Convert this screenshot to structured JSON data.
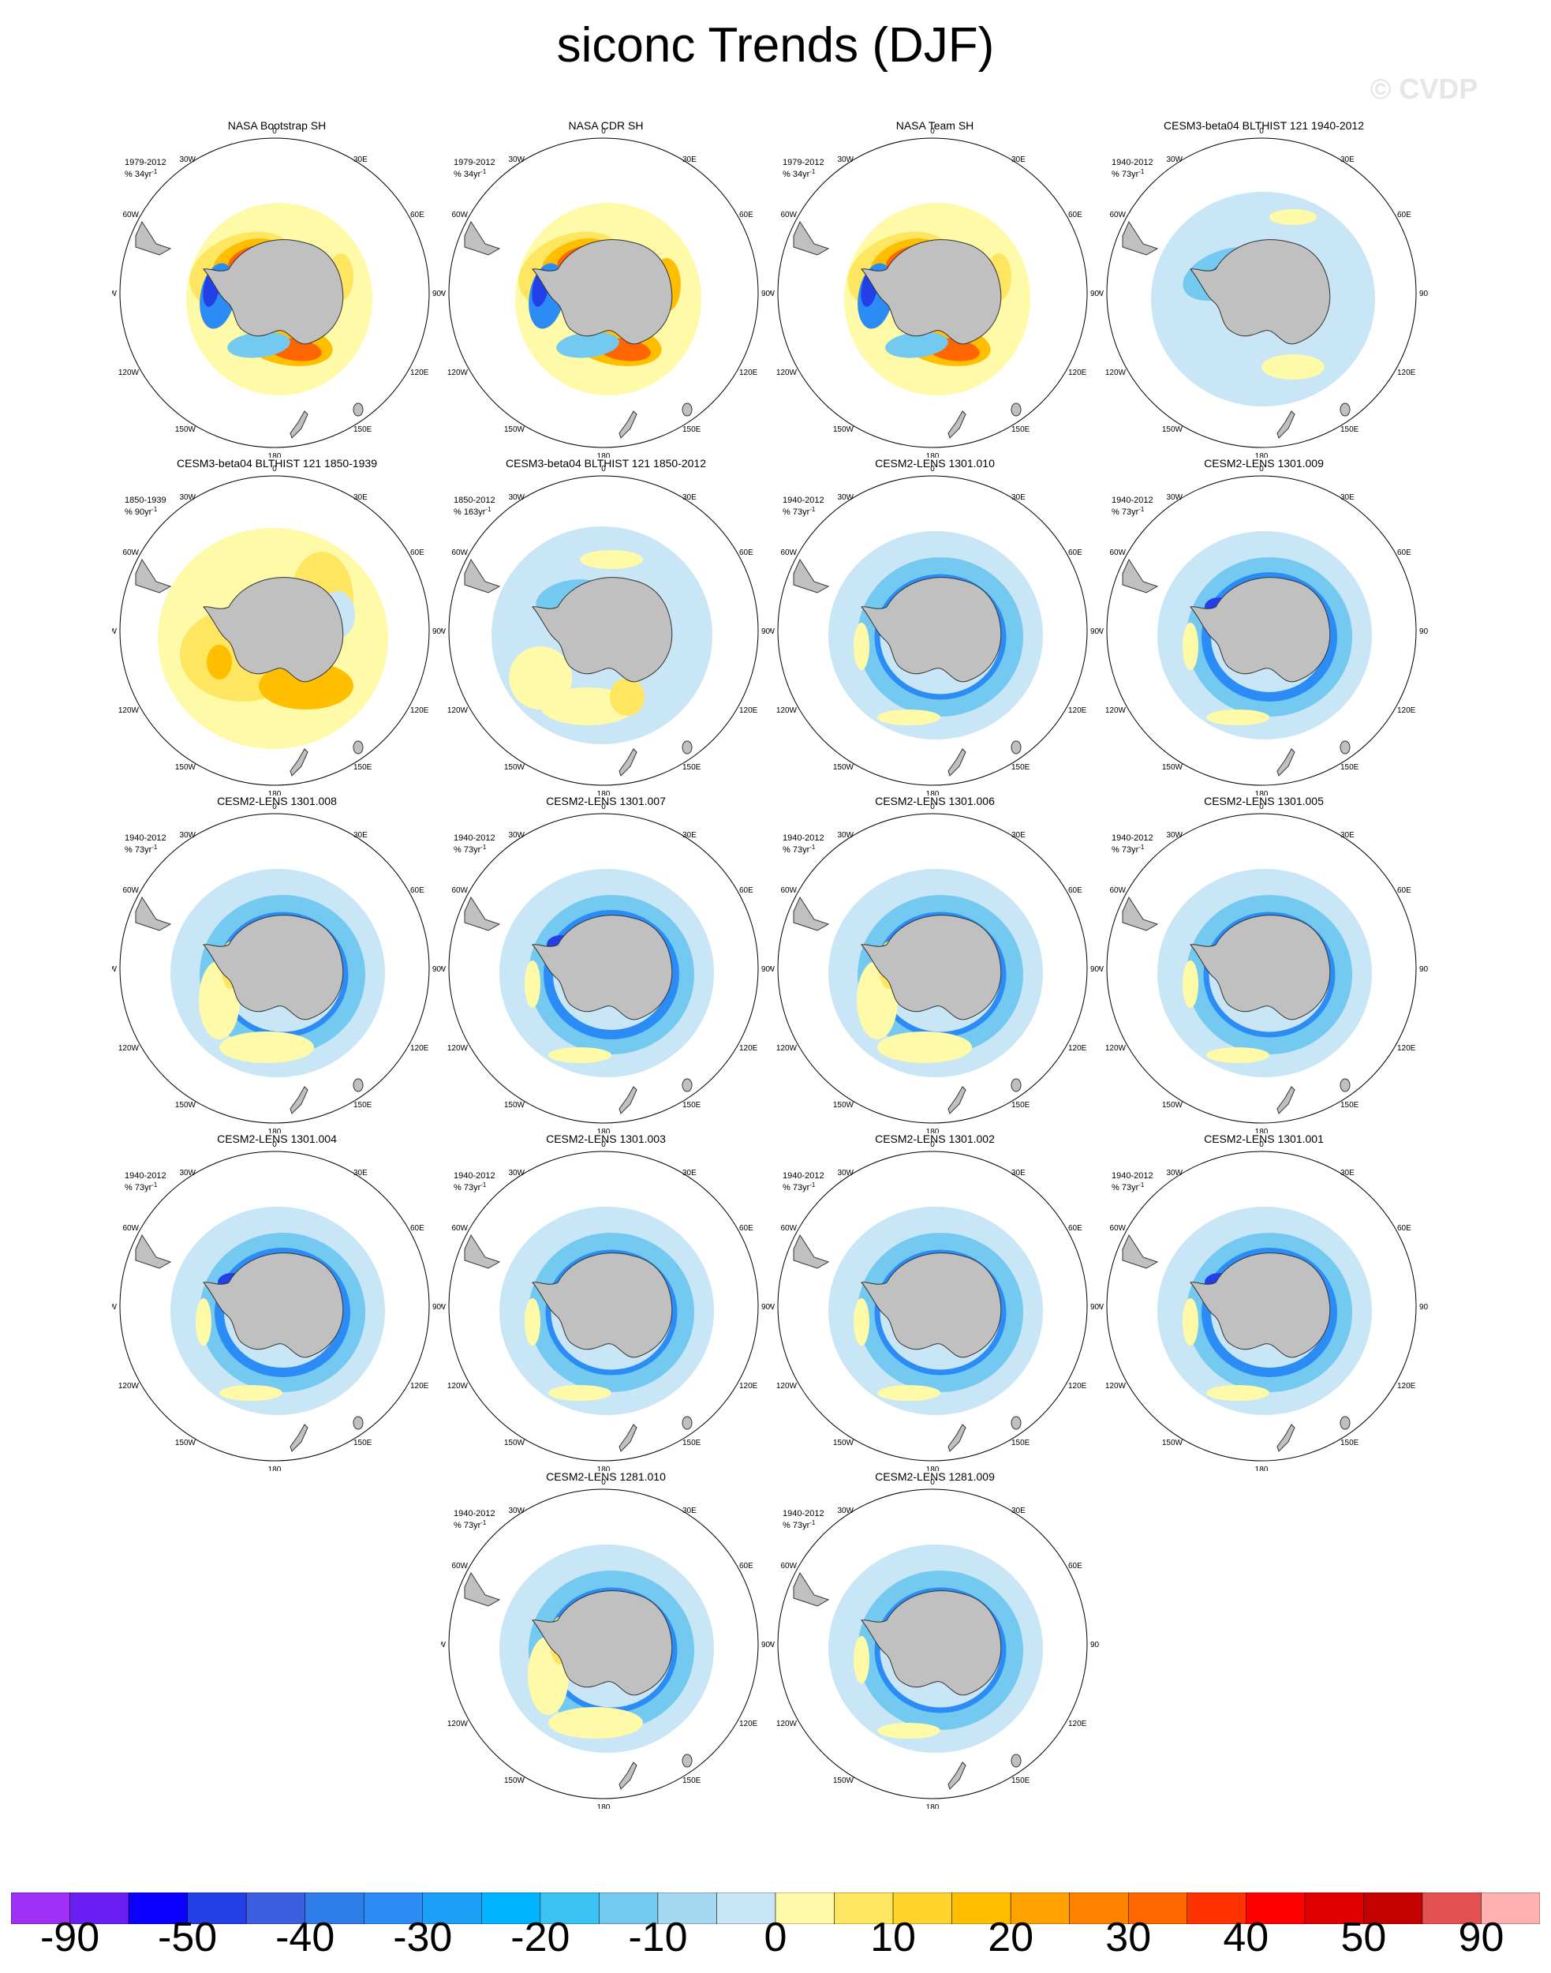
{
  "figure": {
    "title": "siconc Trends (DJF)",
    "watermark": "© CVDP"
  },
  "map_labels": {
    "top": "0",
    "bottom": "180",
    "left_top": "30W",
    "right_top": "30E",
    "left_upper": "60W",
    "right_upper": "60E",
    "left_mid": "90W",
    "right_mid": "90E",
    "left_lower": "120W",
    "right_lower": "120E",
    "left_bottom": "150W",
    "right_bottom": "150E"
  },
  "panels": [
    {
      "title": "NASA Bootstrap SH",
      "period": "1979-2012",
      "units": "% 34yr",
      "units_exp": "-1",
      "pattern": "obs_boot"
    },
    {
      "title": "NASA CDR SH",
      "period": "1979-2012",
      "units": "% 34yr",
      "units_exp": "-1",
      "pattern": "obs_cdr"
    },
    {
      "title": "NASA Team SH",
      "period": "1979-2012",
      "units": "% 34yr",
      "units_exp": "-1",
      "pattern": "obs_boot"
    },
    {
      "title": "CESM3-beta04 BLTHIST 121 1940-2012",
      "period": "1940-2012",
      "units": "% 73yr",
      "units_exp": "-1",
      "pattern": "blt_1940"
    },
    {
      "title": "CESM3-beta04 BLTHIST 121 1850-1939",
      "period": "1850-1939",
      "units": "% 90yr",
      "units_exp": "-1",
      "pattern": "blt_1850_1939"
    },
    {
      "title": "CESM3-beta04 BLTHIST 121 1850-2012",
      "period": "1850-2012",
      "units": "% 163yr",
      "units_exp": "-1",
      "pattern": "blt_1850_2012"
    },
    {
      "title": "CESM2-LENS 1301.010",
      "period": "1940-2012",
      "units": "% 73yr",
      "units_exp": "-1",
      "pattern": "lens"
    },
    {
      "title": "CESM2-LENS 1301.009",
      "period": "1940-2012",
      "units": "% 73yr",
      "units_exp": "-1",
      "pattern": "lens_strong"
    },
    {
      "title": "CESM2-LENS 1301.008",
      "period": "1940-2012",
      "units": "% 73yr",
      "units_exp": "-1",
      "pattern": "lens_yellow"
    },
    {
      "title": "CESM2-LENS 1301.007",
      "period": "1940-2012",
      "units": "% 73yr",
      "units_exp": "-1",
      "pattern": "lens_strong"
    },
    {
      "title": "CESM2-LENS 1301.006",
      "period": "1940-2012",
      "units": "% 73yr",
      "units_exp": "-1",
      "pattern": "lens_yellow"
    },
    {
      "title": "CESM2-LENS 1301.005",
      "period": "1940-2012",
      "units": "% 73yr",
      "units_exp": "-1",
      "pattern": "lens"
    },
    {
      "title": "CESM2-LENS 1301.004",
      "period": "1940-2012",
      "units": "% 73yr",
      "units_exp": "-1",
      "pattern": "lens_strong"
    },
    {
      "title": "CESM2-LENS 1301.003",
      "period": "1940-2012",
      "units": "% 73yr",
      "units_exp": "-1",
      "pattern": "lens"
    },
    {
      "title": "CESM2-LENS 1301.002",
      "period": "1940-2012",
      "units": "% 73yr",
      "units_exp": "-1",
      "pattern": "lens"
    },
    {
      "title": "CESM2-LENS 1301.001",
      "period": "1940-2012",
      "units": "% 73yr",
      "units_exp": "-1",
      "pattern": "lens_strong"
    },
    {
      "title": "CESM2-LENS 1281.010",
      "period": "1940-2012",
      "units": "% 73yr",
      "units_exp": "-1",
      "pattern": "lens_yellow"
    },
    {
      "title": "CESM2-LENS 1281.009",
      "period": "1940-2012",
      "units": "% 73yr",
      "units_exp": "-1",
      "pattern": "lens"
    }
  ],
  "colorbar": {
    "colors": [
      "#9f2ff5",
      "#6a1ff2",
      "#0b00ff",
      "#2340e8",
      "#3b5fe0",
      "#2f7de9",
      "#2b8cf5",
      "#1c9ff7",
      "#00b4ff",
      "#39c2f2",
      "#73c9f0",
      "#a5d8f1",
      "#c8e6f5",
      "#fffaa8",
      "#ffe660",
      "#ffd32c",
      "#ffbf00",
      "#ffa100",
      "#ff8200",
      "#ff6600",
      "#ff3300",
      "#ff0000",
      "#e00000",
      "#c40000",
      "#e55050",
      "#ffb0b0"
    ],
    "labels": [
      "-90",
      "-50",
      "-40",
      "-30",
      "-20",
      "-10",
      "0",
      "10",
      "20",
      "30",
      "40",
      "50",
      "90"
    ]
  },
  "palette": {
    "land": "#c0c0c0",
    "blue_light": "#c8e6f5",
    "blue_mid": "#73c9f0",
    "blue_strong": "#2b8cf5",
    "blue_deep": "#2340e8",
    "yellow_light": "#fffaa8",
    "yellow": "#ffe660",
    "orange": "#ffbf00",
    "red_orange": "#ff6600",
    "red": "#ff3300"
  }
}
